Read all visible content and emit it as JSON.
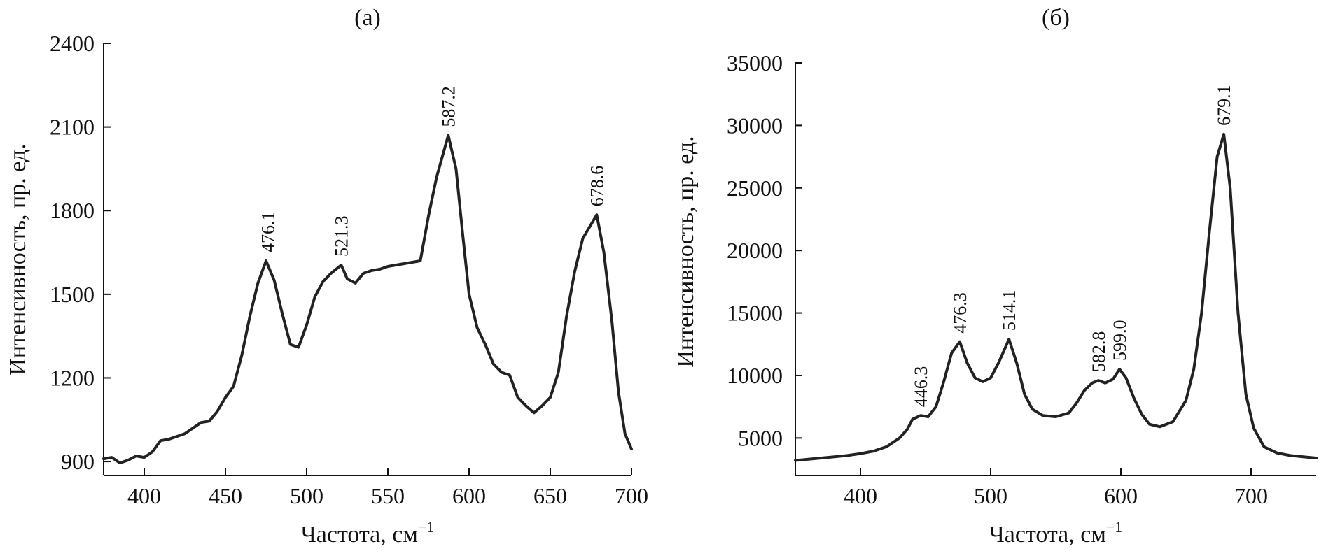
{
  "chart_data": [
    {
      "type": "line",
      "title": "(a)",
      "xlabel": "Частота, см",
      "xlabel_sup": "−1",
      "ylabel": "Интенсивность, пр. ед.",
      "xlim": [
        375,
        700
      ],
      "ylim": [
        850,
        2400
      ],
      "xticks": [
        400,
        450,
        500,
        550,
        600,
        650,
        700
      ],
      "yticks": [
        900,
        1200,
        1500,
        1800,
        2100,
        2400
      ],
      "color": "#222222",
      "x": [
        375,
        380,
        385,
        390,
        395,
        400,
        405,
        410,
        415,
        420,
        425,
        430,
        435,
        440,
        445,
        450,
        455,
        460,
        465,
        470,
        475,
        480,
        485,
        490,
        495,
        500,
        505,
        510,
        515,
        521.3,
        525,
        530,
        535,
        540,
        545,
        550,
        555,
        560,
        565,
        570,
        575,
        580,
        587.2,
        592,
        596,
        600,
        605,
        610,
        615,
        620,
        625,
        630,
        635,
        640,
        645,
        650,
        655,
        660,
        665,
        670,
        678.6,
        683,
        688,
        692,
        696,
        700
      ],
      "y": [
        910,
        915,
        895,
        905,
        920,
        915,
        935,
        975,
        980,
        990,
        1000,
        1020,
        1040,
        1045,
        1080,
        1130,
        1170,
        1280,
        1420,
        1540,
        1620,
        1550,
        1430,
        1320,
        1310,
        1390,
        1490,
        1545,
        1575,
        1605,
        1555,
        1540,
        1575,
        1585,
        1590,
        1600,
        1605,
        1610,
        1615,
        1620,
        1780,
        1920,
        2070,
        1950,
        1720,
        1500,
        1380,
        1320,
        1250,
        1220,
        1210,
        1130,
        1100,
        1075,
        1100,
        1130,
        1220,
        1420,
        1580,
        1700,
        1785,
        1650,
        1400,
        1150,
        1000,
        945
      ],
      "peak_labels": [
        {
          "x": 476.1,
          "y": 1620,
          "text": "476.1"
        },
        {
          "x": 521.3,
          "y": 1605,
          "text": "521.3"
        },
        {
          "x": 587.2,
          "y": 2070,
          "text": "587.2"
        },
        {
          "x": 678.6,
          "y": 1785,
          "text": "678.6"
        }
      ]
    },
    {
      "type": "line",
      "title": "(б)",
      "xlabel": "Частота, см",
      "xlabel_sup": "−1",
      "ylabel": "Интенсивность, пр. ед.",
      "xlim": [
        350,
        750
      ],
      "ylim": [
        2000,
        35000
      ],
      "xticks": [
        400,
        500,
        600,
        700
      ],
      "yticks": [
        5000,
        10000,
        15000,
        20000,
        25000,
        30000,
        35000
      ],
      "color": "#222222",
      "x": [
        350,
        360,
        370,
        380,
        390,
        400,
        410,
        420,
        430,
        436,
        440,
        446.3,
        452,
        458,
        464,
        470,
        476.3,
        482,
        488,
        494,
        500,
        506,
        514.1,
        520,
        526,
        532,
        540,
        550,
        560,
        566,
        572,
        578,
        582.8,
        588,
        594,
        599,
        604,
        610,
        616,
        622,
        630,
        640,
        650,
        656,
        662,
        668,
        674,
        679.1,
        684,
        690,
        696,
        702,
        710,
        720,
        730,
        740,
        750
      ],
      "y": [
        3200,
        3300,
        3400,
        3500,
        3600,
        3750,
        3950,
        4300,
        5000,
        5700,
        6500,
        6800,
        6700,
        7500,
        9500,
        11800,
        12700,
        11000,
        9800,
        9500,
        9800,
        11000,
        12900,
        11000,
        8500,
        7300,
        6800,
        6700,
        7000,
        7800,
        8800,
        9400,
        9600,
        9400,
        9700,
        10500,
        9800,
        8200,
        6900,
        6100,
        5900,
        6300,
        8000,
        10500,
        15000,
        21500,
        27500,
        29300,
        25000,
        15000,
        8500,
        5800,
        4300,
        3800,
        3600,
        3500,
        3400
      ],
      "peak_labels": [
        {
          "x": 446.3,
          "y": 6800,
          "text": "446.3"
        },
        {
          "x": 476.3,
          "y": 12700,
          "text": "476.3"
        },
        {
          "x": 514.1,
          "y": 12900,
          "text": "514.1"
        },
        {
          "x": 582.8,
          "y": 9600,
          "text": "582.8"
        },
        {
          "x": 599.0,
          "y": 10500,
          "text": "599.0"
        },
        {
          "x": 679.1,
          "y": 29300,
          "text": "679.1"
        }
      ]
    }
  ]
}
